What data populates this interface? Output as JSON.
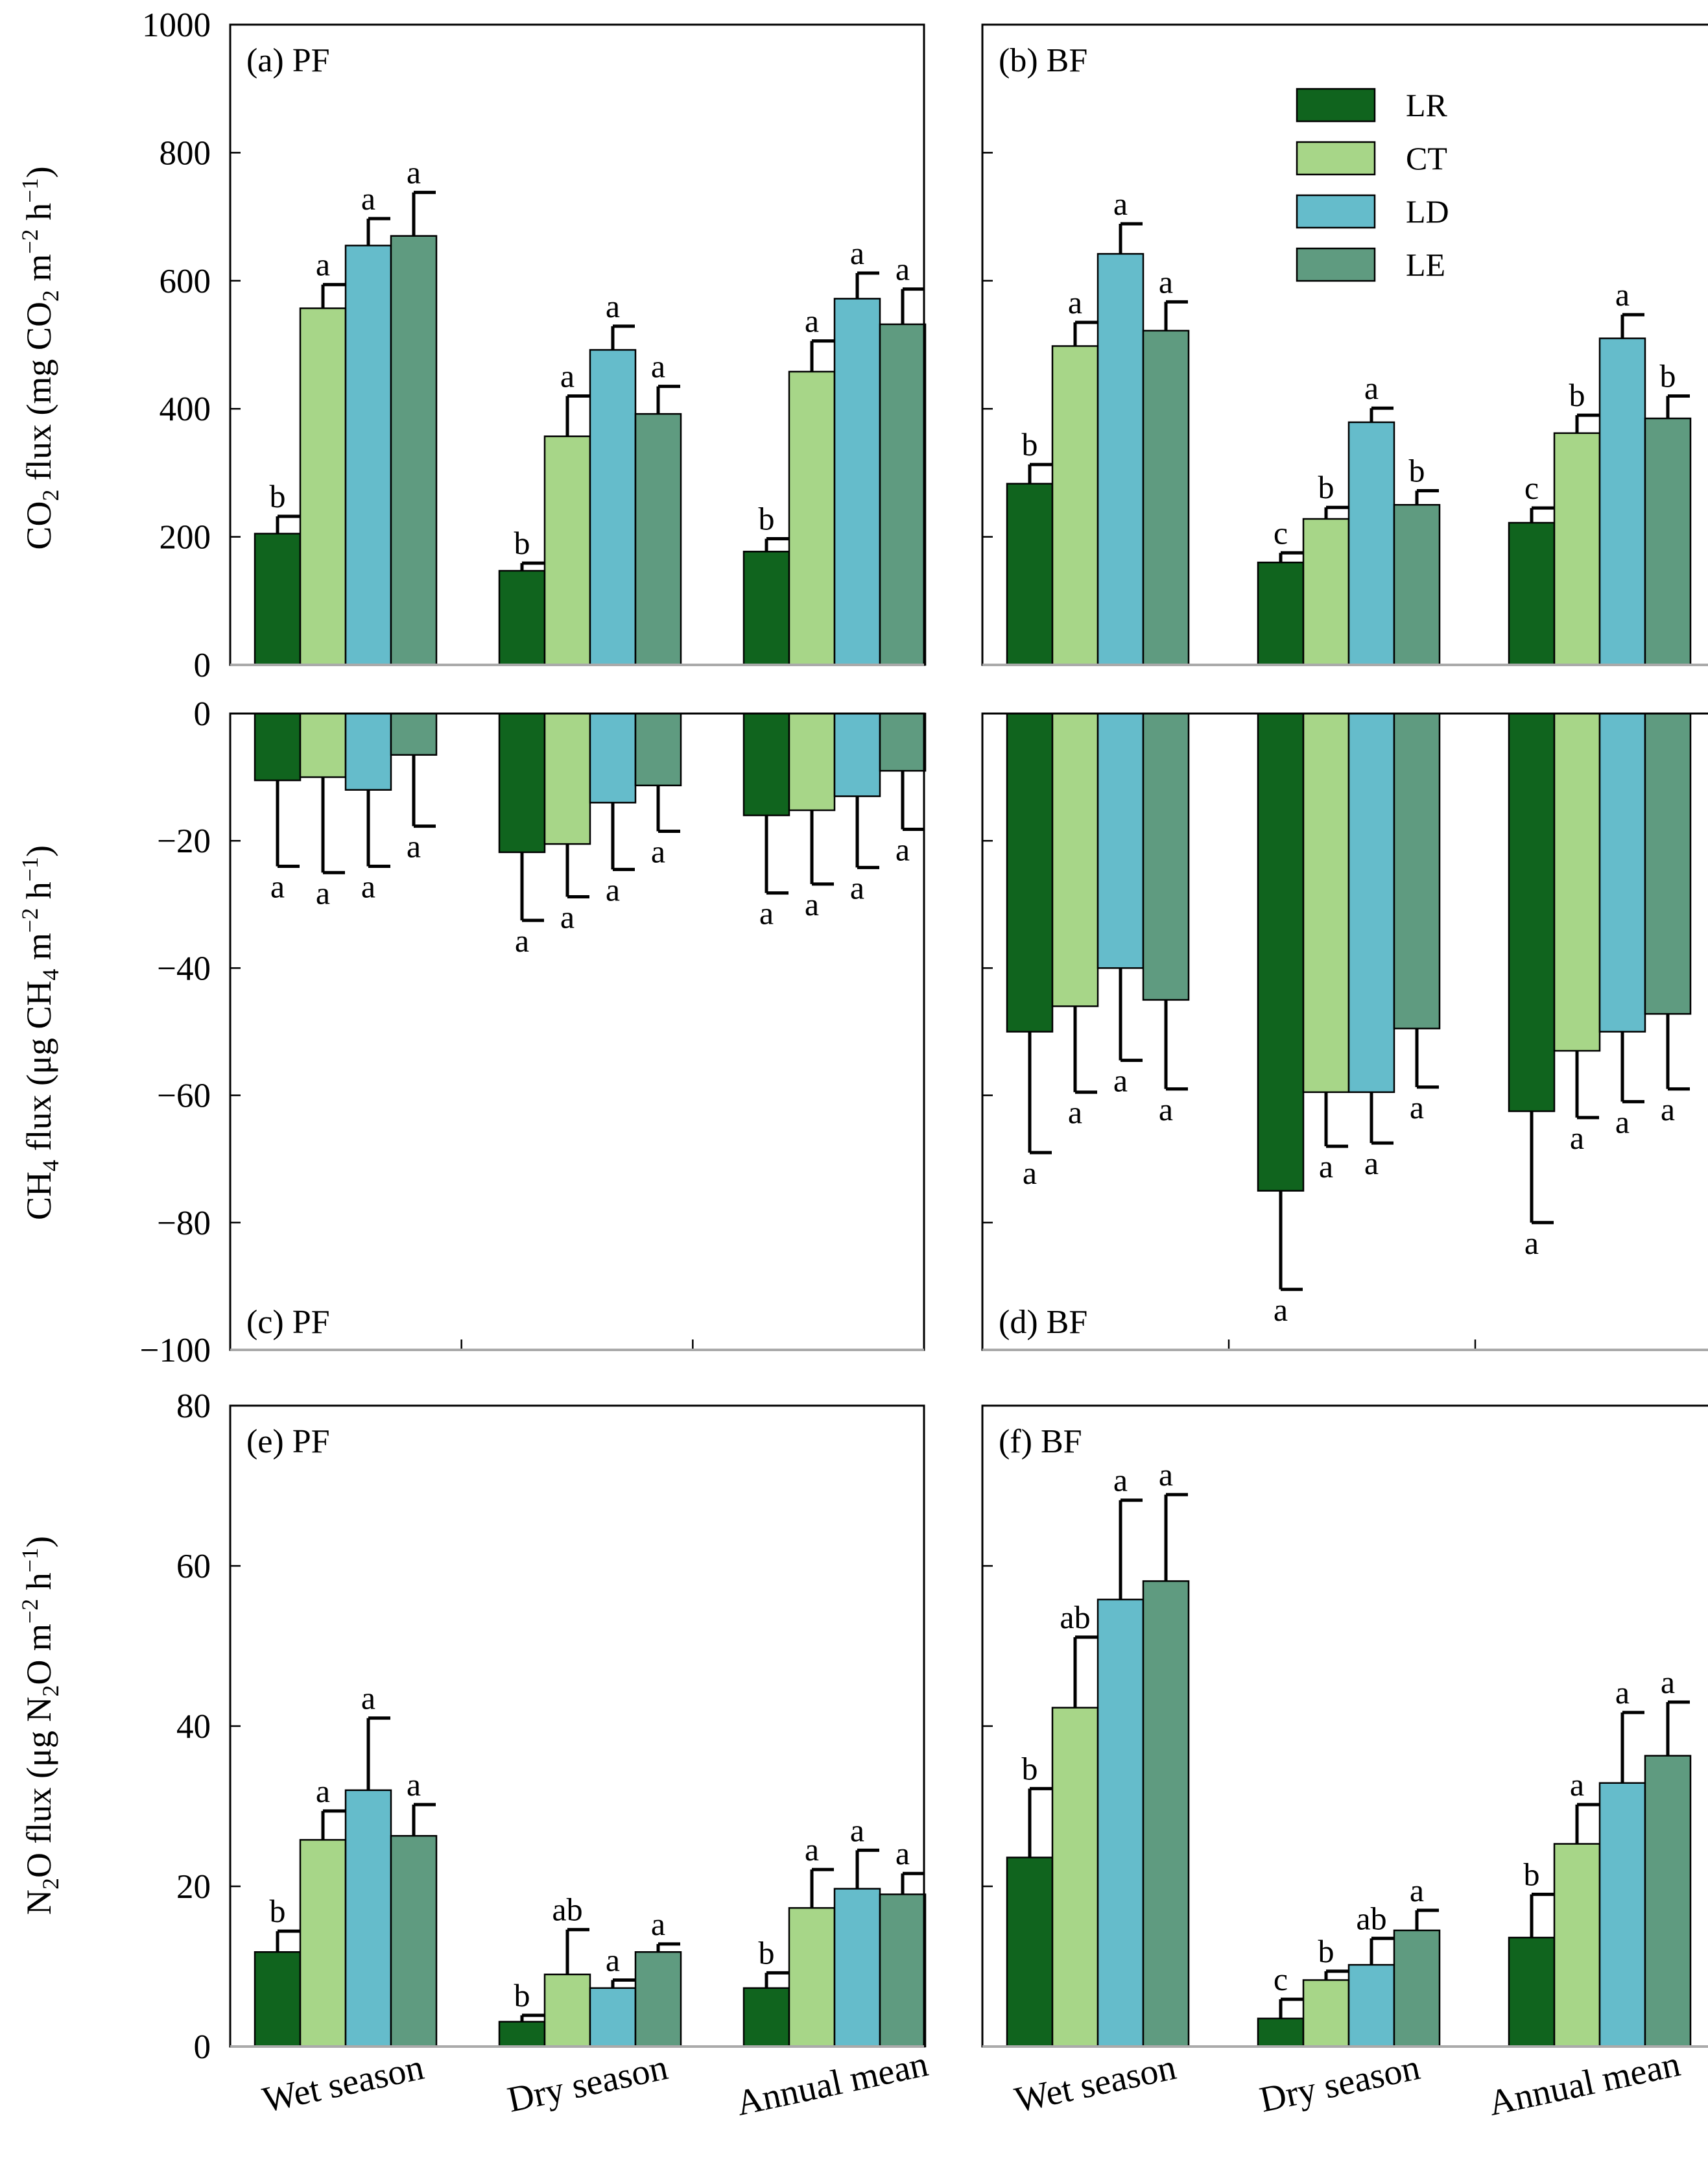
{
  "colors": {
    "LR": "#10641e",
    "CT": "#a7d688",
    "LD": "#65bccb",
    "LE": "#5f9b80"
  },
  "legend": [
    "LR",
    "CT",
    "LD",
    "LE"
  ],
  "categories": [
    "Wet season",
    "Dry season",
    "Annual mean"
  ],
  "rows": [
    {
      "id": "co2",
      "ylim": [
        0,
        1000
      ],
      "ticks": [
        0,
        200,
        400,
        600,
        800,
        1000
      ],
      "tick_labels": [
        "0",
        "200",
        "400",
        "600",
        "800",
        "1000"
      ],
      "sig_pos": "above",
      "ylabel": {
        "a": "CO",
        "a_sub": "2",
        "b": " flux (mg CO",
        "b_sub": "2",
        "c": " m",
        "c_sup": "−2",
        "d": " h",
        "d_sup": "−1",
        "e": ")"
      }
    },
    {
      "id": "ch4",
      "ylim": [
        -100,
        0
      ],
      "ticks": [
        -100,
        -80,
        -60,
        -40,
        -20,
        0
      ],
      "tick_labels": [
        "−100",
        "−80",
        "−60",
        "−40",
        "−20",
        "0"
      ],
      "sig_pos": "below",
      "ylabel": {
        "a": "CH",
        "a_sub": "4",
        "b": " flux (μg CH",
        "b_sub": "4",
        "c": " m",
        "c_sup": "−2",
        "d": " h",
        "d_sup": "−1",
        "e": ")"
      }
    },
    {
      "id": "n2o",
      "ylim": [
        0,
        80
      ],
      "ticks": [
        0,
        20,
        40,
        60,
        80
      ],
      "tick_labels": [
        "0",
        "20",
        "40",
        "60",
        "80"
      ],
      "sig_pos": "above",
      "ylabel": {
        "a": "N",
        "a_sub": "2",
        "b": "O flux (μg N",
        "b_sub": "2",
        "c": "O m",
        "c_sup": "−2",
        "d": " h",
        "d_sup": "−1",
        "e": ")"
      }
    }
  ],
  "chart_data": [
    {
      "panel": "(a) PF",
      "type": "bar",
      "yrange": [
        0,
        1000
      ],
      "categories": [
        "Wet season",
        "Dry season",
        "Annual mean"
      ],
      "series": [
        {
          "name": "LR",
          "values": [
            205,
            147,
            177
          ],
          "errors": [
            27,
            12,
            20
          ],
          "letters": [
            "b",
            "b",
            "b"
          ]
        },
        {
          "name": "CT",
          "values": [
            557,
            357,
            458
          ],
          "errors": [
            37,
            63,
            48
          ],
          "letters": [
            "a",
            "a",
            "a"
          ]
        },
        {
          "name": "LD",
          "values": [
            655,
            492,
            572
          ],
          "errors": [
            42,
            37,
            40
          ],
          "letters": [
            "a",
            "a",
            "a"
          ]
        },
        {
          "name": "LE",
          "values": [
            670,
            392,
            532
          ],
          "errors": [
            68,
            43,
            55
          ],
          "letters": [
            "a",
            "a",
            "a"
          ]
        }
      ]
    },
    {
      "panel": "(b) BF",
      "type": "bar",
      "yrange": [
        0,
        1000
      ],
      "categories": [
        "Wet season",
        "Dry season",
        "Annual mean"
      ],
      "series": [
        {
          "name": "LR",
          "values": [
            283,
            160,
            222
          ],
          "errors": [
            30,
            15,
            23
          ],
          "letters": [
            "b",
            "c",
            "c"
          ]
        },
        {
          "name": "CT",
          "values": [
            498,
            228,
            362
          ],
          "errors": [
            37,
            18,
            28
          ],
          "letters": [
            "a",
            "b",
            "b"
          ]
        },
        {
          "name": "LD",
          "values": [
            642,
            379,
            510
          ],
          "errors": [
            47,
            22,
            37
          ],
          "letters": [
            "a",
            "a",
            "a"
          ]
        },
        {
          "name": "LE",
          "values": [
            522,
            250,
            385
          ],
          "errors": [
            45,
            22,
            35
          ],
          "letters": [
            "a",
            "b",
            "b"
          ]
        }
      ]
    },
    {
      "panel": "(c) PF",
      "type": "bar",
      "yrange": [
        -100,
        0
      ],
      "categories": [
        "Wet season",
        "Dry season",
        "Annual mean"
      ],
      "series": [
        {
          "name": "LR",
          "values": [
            -10.5,
            -21.8,
            -16
          ],
          "errors": [
            13.5,
            10.7,
            12.2
          ],
          "letters": [
            "a",
            "a",
            "a"
          ]
        },
        {
          "name": "CT",
          "values": [
            -10,
            -20.5,
            -15.2
          ],
          "errors": [
            15,
            8.3,
            11.6
          ],
          "letters": [
            "a",
            "a",
            "a"
          ]
        },
        {
          "name": "LD",
          "values": [
            -12,
            -14,
            -13
          ],
          "errors": [
            12,
            10.5,
            11.2
          ],
          "letters": [
            "a",
            "a",
            "a"
          ]
        },
        {
          "name": "LE",
          "values": [
            -6.5,
            -11.3,
            -9
          ],
          "errors": [
            11.2,
            7.2,
            9.2
          ],
          "letters": [
            "a",
            "a",
            "a"
          ]
        }
      ]
    },
    {
      "panel": "(d) BF",
      "type": "bar",
      "yrange": [
        -100,
        0
      ],
      "categories": [
        "Wet season",
        "Dry season",
        "Annual mean"
      ],
      "series": [
        {
          "name": "LR",
          "values": [
            -50,
            -75,
            -62.5
          ],
          "errors": [
            19,
            15.5,
            17.5
          ],
          "letters": [
            "a",
            "a",
            "a"
          ]
        },
        {
          "name": "CT",
          "values": [
            -46,
            -59.5,
            -53
          ],
          "errors": [
            13.5,
            8.5,
            10.5
          ],
          "letters": [
            "a",
            "a",
            "a"
          ]
        },
        {
          "name": "LD",
          "values": [
            -40,
            -59.5,
            -50
          ],
          "errors": [
            14.5,
            8,
            11
          ],
          "letters": [
            "a",
            "a",
            "a"
          ]
        },
        {
          "name": "LE",
          "values": [
            -45,
            -49.5,
            -47.2
          ],
          "errors": [
            14,
            9.2,
            11.8
          ],
          "letters": [
            "a",
            "a",
            "a"
          ]
        }
      ]
    },
    {
      "panel": "(e) PF",
      "type": "bar",
      "yrange": [
        0,
        80
      ],
      "categories": [
        "Wet season",
        "Dry season",
        "Annual mean"
      ],
      "series": [
        {
          "name": "LR",
          "values": [
            11.8,
            3.1,
            7.3
          ],
          "errors": [
            2.6,
            0.8,
            1.9
          ],
          "letters": [
            "b",
            "b",
            "b"
          ]
        },
        {
          "name": "CT",
          "values": [
            25.8,
            9,
            17.3
          ],
          "errors": [
            3.6,
            5.6,
            4.8
          ],
          "letters": [
            "a",
            "ab",
            "a"
          ]
        },
        {
          "name": "LD",
          "values": [
            32,
            7.3,
            19.7
          ],
          "errors": [
            9,
            1,
            4.8
          ],
          "letters": [
            "a",
            "a",
            "a"
          ]
        },
        {
          "name": "LE",
          "values": [
            26.3,
            11.8,
            19
          ],
          "errors": [
            3.9,
            1,
            2.6
          ],
          "letters": [
            "a",
            "a",
            "a"
          ]
        }
      ]
    },
    {
      "panel": "(f) BF",
      "type": "bar",
      "yrange": [
        0,
        80
      ],
      "categories": [
        "Wet season",
        "Dry season",
        "Annual mean"
      ],
      "series": [
        {
          "name": "LR",
          "values": [
            23.6,
            3.5,
            13.6
          ],
          "errors": [
            8.6,
            2.4,
            5.4
          ],
          "letters": [
            "b",
            "c",
            "b"
          ]
        },
        {
          "name": "CT",
          "values": [
            42.3,
            8.3,
            25.3
          ],
          "errors": [
            8.8,
            1.1,
            4.9
          ],
          "letters": [
            "ab",
            "b",
            "a"
          ]
        },
        {
          "name": "LD",
          "values": [
            55.8,
            10.2,
            32.9
          ],
          "errors": [
            12.4,
            3.3,
            8.8
          ],
          "letters": [
            "a",
            "ab",
            "a"
          ]
        },
        {
          "name": "LE",
          "values": [
            58.1,
            14.5,
            36.3
          ],
          "errors": [
            10.8,
            2.5,
            6.7
          ],
          "letters": [
            "a",
            "a",
            "a"
          ]
        }
      ]
    }
  ]
}
